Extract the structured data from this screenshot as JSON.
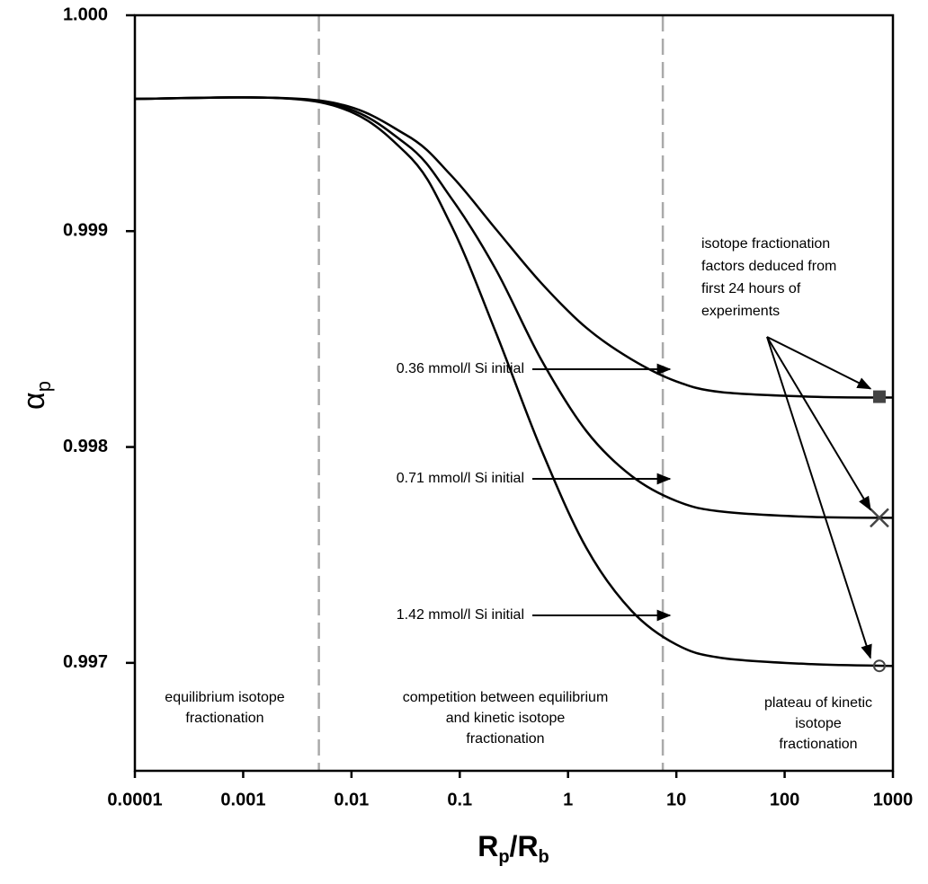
{
  "chart_data": {
    "type": "line",
    "xscale": "log",
    "xlabel": [
      {
        "text": "R",
        "sub": "p"
      },
      {
        "text": "/R",
        "sub": "b"
      }
    ],
    "ylabel": {
      "text": "α",
      "sub": "p"
    },
    "xlim": [
      0.0001,
      1000
    ],
    "xticks": [
      0.0001,
      0.001,
      0.01,
      0.1,
      1,
      10,
      100,
      1000
    ],
    "ylim": [
      0.9965,
      1.0
    ],
    "yticks": [
      {
        "value": 1.0,
        "label": "1.000"
      },
      0.999,
      0.998,
      0.997
    ],
    "x": [
      0.0001,
      0.0051,
      0.0316,
      0.0826,
      0.215,
      0.562,
      1.47,
      3.83,
      10,
      26.1,
      178,
      1000
    ],
    "series": [
      {
        "name": "0.36 mmol/l Si initial",
        "color": "#000000",
        "values": [
          0.999613,
          0.999605,
          0.999447,
          0.99926,
          0.99901,
          0.998761,
          0.998553,
          0.998407,
          0.998304,
          0.998254,
          0.998233,
          0.998229
        ]
      },
      {
        "name": "0.71 mmol/l Si initial",
        "color": "#000000",
        "values": [
          0.999613,
          0.999601,
          0.999405,
          0.999156,
          0.998823,
          0.998407,
          0.998075,
          0.997867,
          0.99775,
          0.997701,
          0.997676,
          0.997672
        ]
      },
      {
        "name": "1.42 mmol/l  Si initial",
        "color": "#000000",
        "values": [
          0.999613,
          0.999597,
          0.999364,
          0.999031,
          0.998532,
          0.997992,
          0.997534,
          0.997243,
          0.997085,
          0.997023,
          0.996994,
          0.996986
        ]
      }
    ],
    "points": {
      "x": [
        750,
        750,
        750
      ],
      "y": [
        0.998233,
        0.997672,
        0.996986
      ],
      "shapes": [
        "square",
        "x",
        "circle"
      ],
      "color": "#444444"
    },
    "vlines": [
      0.005,
      7.5
    ],
    "vline_color": "#aaaaaa",
    "regions": [
      [
        "equilibrium isotope",
        "fractionation"
      ],
      [
        "competition between equilibrium",
        "and kinetic isotope",
        "fractionation"
      ],
      [
        "plateau of kinetic",
        "isotope",
        "fractionation"
      ]
    ],
    "callout": [
      "isotope fractionation",
      "factors deduced from",
      "first 24 hours of",
      "experiments"
    ]
  }
}
